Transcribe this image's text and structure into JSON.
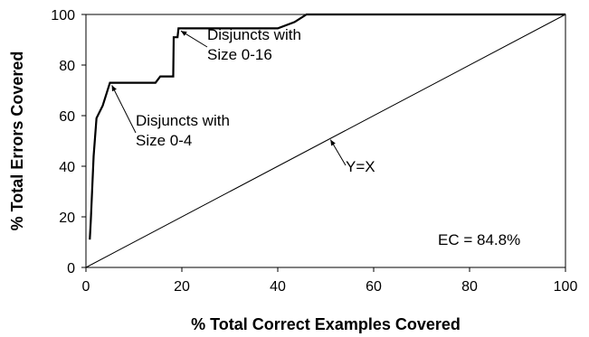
{
  "chart_data": {
    "type": "line",
    "xlabel": "% Total Correct Examples Covered",
    "ylabel": "% Total Errors Covered",
    "xlim": [
      0,
      100
    ],
    "ylim": [
      0,
      100
    ],
    "x_ticks": [
      "0",
      "20",
      "40",
      "60",
      "80",
      "100"
    ],
    "y_ticks": [
      "0",
      "20",
      "40",
      "60",
      "80",
      "100"
    ],
    "grid": false,
    "legend": "none",
    "series": [
      {
        "style": "thick",
        "points": [
          [
            0.8,
            11
          ],
          [
            1.0,
            18
          ],
          [
            1.6,
            44
          ],
          [
            2.2,
            59
          ],
          [
            3.5,
            64
          ],
          [
            5.0,
            73
          ],
          [
            14.5,
            73
          ],
          [
            15.5,
            75.5
          ],
          [
            18.2,
            75.5
          ],
          [
            18.3,
            91
          ],
          [
            19.1,
            91
          ],
          [
            19.3,
            94.5
          ],
          [
            40.0,
            94.5
          ],
          [
            43.5,
            97
          ],
          [
            46.0,
            100
          ],
          [
            100,
            100
          ]
        ]
      },
      {
        "style": "thin",
        "points": [
          [
            0,
            0
          ],
          [
            100,
            100
          ]
        ]
      }
    ],
    "annotations": [
      {
        "id": "size-0-16",
        "lines": [
          "Disjuncts with",
          "Size 0-16"
        ],
        "arrow_from": [
          26.5,
          86.5
        ],
        "arrow_to": [
          19.8,
          93.5
        ]
      },
      {
        "id": "size-0-4",
        "lines": [
          "Disjuncts with",
          "Size 0-4"
        ],
        "arrow_from": [
          10.0,
          60.0
        ],
        "arrow_to": [
          5.4,
          72.0
        ]
      },
      {
        "id": "y-equals-x",
        "lines": [
          "Y=X"
        ],
        "arrow_from": [
          55.0,
          39.5
        ],
        "arrow_to": [
          51.0,
          50.5
        ]
      }
    ],
    "box_text": "EC = 84.8%"
  }
}
